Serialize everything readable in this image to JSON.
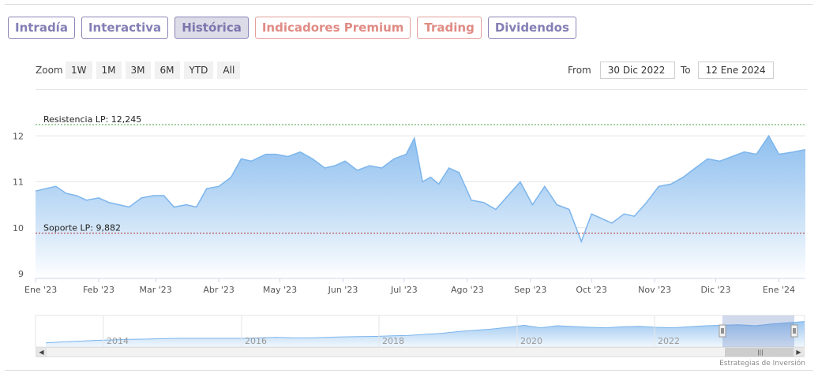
{
  "tabs": [
    {
      "label": "Intradía",
      "active": false,
      "premium": false
    },
    {
      "label": "Interactiva",
      "active": false,
      "premium": false
    },
    {
      "label": "Histórica",
      "active": true,
      "premium": false
    },
    {
      "label": "Indicadores Premium",
      "active": false,
      "premium": true
    },
    {
      "label": "Trading",
      "active": false,
      "premium": true
    },
    {
      "label": "Dividendos",
      "active": false,
      "premium": false
    }
  ],
  "zoom": {
    "label": "Zoom",
    "buttons": [
      "1W",
      "1M",
      "3M",
      "6M",
      "YTD",
      "All"
    ]
  },
  "range": {
    "from_label": "From",
    "from_value": "30 Dic 2022",
    "to_label": "To",
    "to_value": "12 Ene 2024"
  },
  "chart_data": {
    "type": "area",
    "x_tick_labels": [
      "Ene '23",
      "Feb '23",
      "Mar '23",
      "Abr '23",
      "May '23",
      "Jun '23",
      "Jul '23",
      "Ago '23",
      "Sep '23",
      "Oct '23",
      "Nov '23",
      "Dic '23",
      "Ene '24"
    ],
    "y_tick_labels": [
      "9",
      "10",
      "11",
      "12"
    ],
    "ylim": [
      8.9,
      12.3
    ],
    "grid": true,
    "x_days": [
      0,
      5,
      10,
      15,
      20,
      25,
      31,
      36,
      41,
      46,
      52,
      58,
      63,
      68,
      74,
      79,
      84,
      90,
      96,
      101,
      106,
      113,
      118,
      124,
      130,
      136,
      142,
      147,
      152,
      158,
      164,
      170,
      176,
      182,
      186,
      190,
      194,
      198,
      203,
      208,
      214,
      220,
      226,
      232,
      238,
      244,
      250,
      256,
      262,
      268,
      273,
      278,
      283,
      289,
      294,
      300,
      306,
      312,
      318,
      324,
      330,
      336,
      342,
      348,
      354,
      360,
      365,
      372,
      378
    ],
    "values": [
      10.8,
      10.85,
      10.9,
      10.75,
      10.7,
      10.6,
      10.65,
      10.55,
      10.5,
      10.45,
      10.65,
      10.7,
      10.7,
      10.45,
      10.5,
      10.45,
      10.85,
      10.9,
      11.1,
      11.5,
      11.45,
      11.6,
      11.6,
      11.55,
      11.65,
      11.5,
      11.3,
      11.35,
      11.45,
      11.25,
      11.35,
      11.3,
      11.5,
      11.6,
      11.95,
      11.0,
      11.1,
      10.95,
      11.3,
      11.2,
      10.6,
      10.55,
      10.4,
      10.7,
      11.0,
      10.5,
      10.9,
      10.5,
      10.4,
      9.7,
      10.3,
      10.2,
      10.1,
      10.3,
      10.25,
      10.55,
      10.9,
      10.95,
      11.1,
      11.3,
      11.5,
      11.45,
      11.55,
      11.65,
      11.6,
      12.0,
      11.6,
      11.65,
      11.7
    ],
    "annotations": [
      {
        "label": "Resistencia LP: 12,245",
        "value": 12.245,
        "color": "#44a044"
      },
      {
        "label": "Soporte LP: 9,882",
        "value": 9.882,
        "color": "#b03030"
      }
    ],
    "navigator": {
      "x_tick_labels": [
        "2014",
        "2016",
        "2018",
        "2020",
        "2022"
      ],
      "values": [
        0.1,
        0.14,
        0.17,
        0.2,
        0.22,
        0.24,
        0.25,
        0.27,
        0.28,
        0.28,
        0.28,
        0.28,
        0.28,
        0.3,
        0.32,
        0.3,
        0.3,
        0.32,
        0.34,
        0.35,
        0.36,
        0.38,
        0.4,
        0.44,
        0.48,
        0.55,
        0.6,
        0.65,
        0.72,
        0.8,
        0.7,
        0.78,
        0.75,
        0.72,
        0.7,
        0.74,
        0.76,
        0.72,
        0.7,
        0.74,
        0.78,
        0.8,
        0.82,
        0.78,
        0.85,
        0.9,
        0.95
      ]
    }
  },
  "colors": {
    "series_line": "#7cb5ec",
    "area_top": "#7cb5ec",
    "area_bottom": "#ffffff"
  },
  "credit": "Estrategias de Inversión"
}
